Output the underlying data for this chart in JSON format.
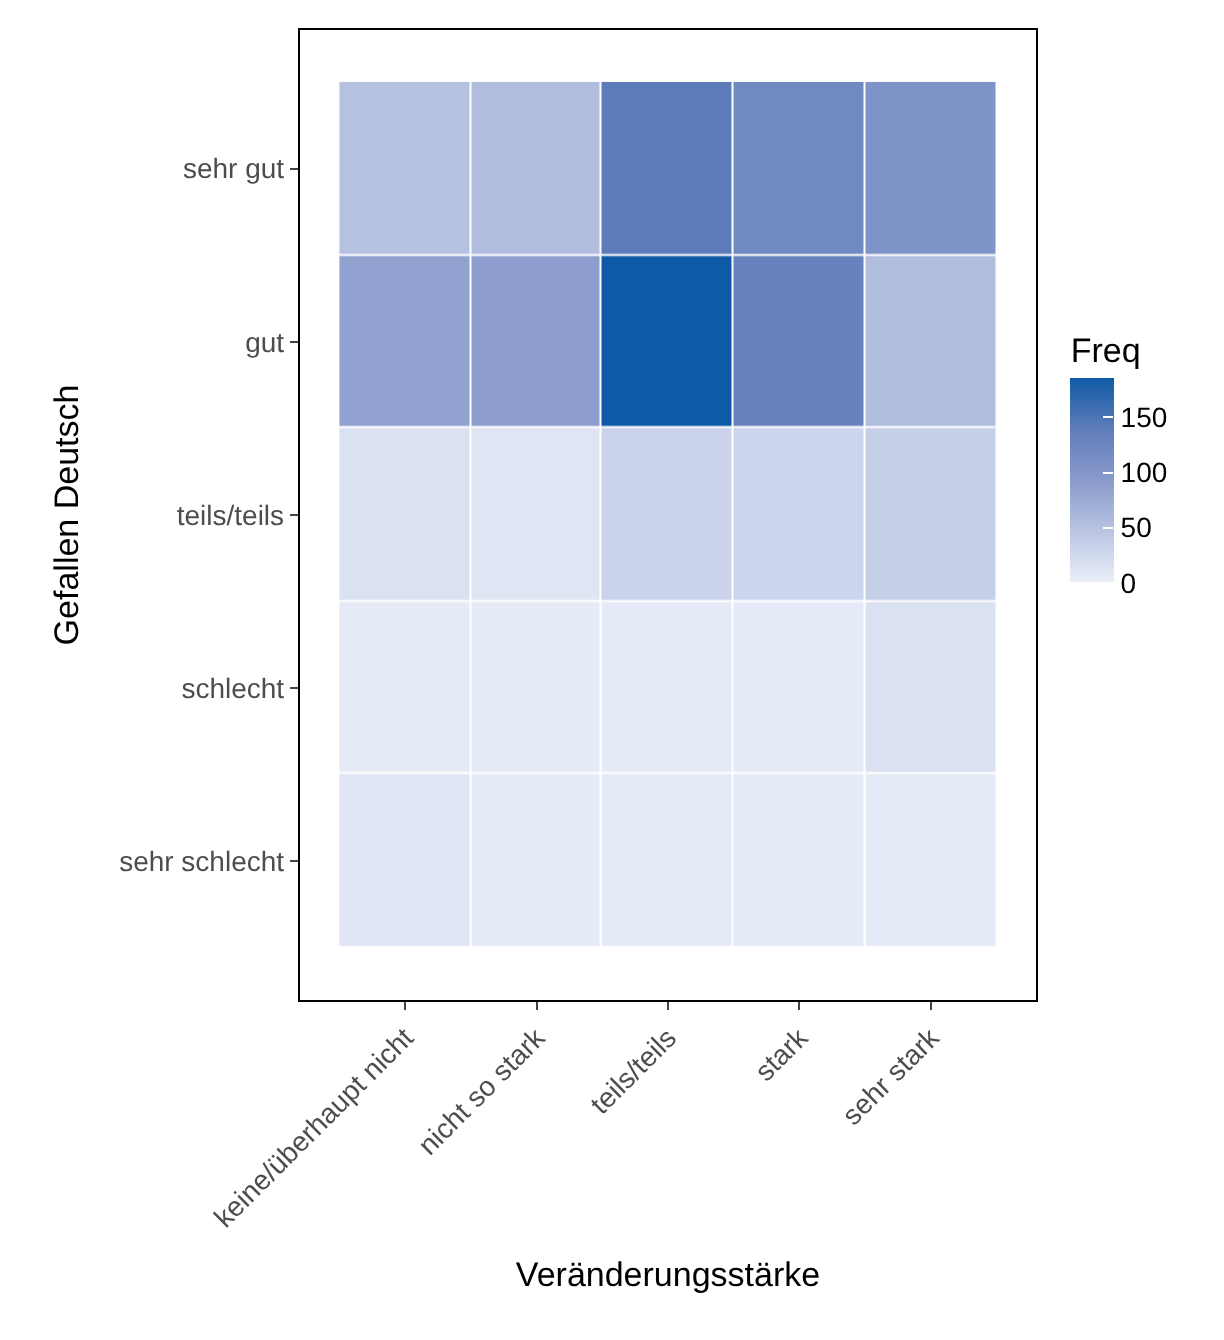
{
  "chart_data": {
    "type": "heatmap",
    "xlabel": "Veränderungsstärke",
    "ylabel": "Gefallen Deutsch",
    "clabel": "Freq",
    "categories": [
      "keine/überhaupt nicht",
      "nicht so stark",
      "teils/teils",
      "stark",
      "sehr stark"
    ],
    "y_categories": [
      "sehr gut",
      "gut",
      "teils/teils",
      "schlecht",
      "sehr schlecht"
    ],
    "cells": [
      [
        50,
        55,
        140,
        120,
        105
      ],
      [
        85,
        90,
        185,
        130,
        55
      ],
      [
        15,
        10,
        30,
        28,
        35
      ],
      [
        5,
        5,
        5,
        5,
        15
      ],
      [
        10,
        5,
        5,
        5,
        5
      ]
    ],
    "clim": [
      0,
      185
    ],
    "cticks": [
      0,
      50,
      100,
      150
    ]
  }
}
